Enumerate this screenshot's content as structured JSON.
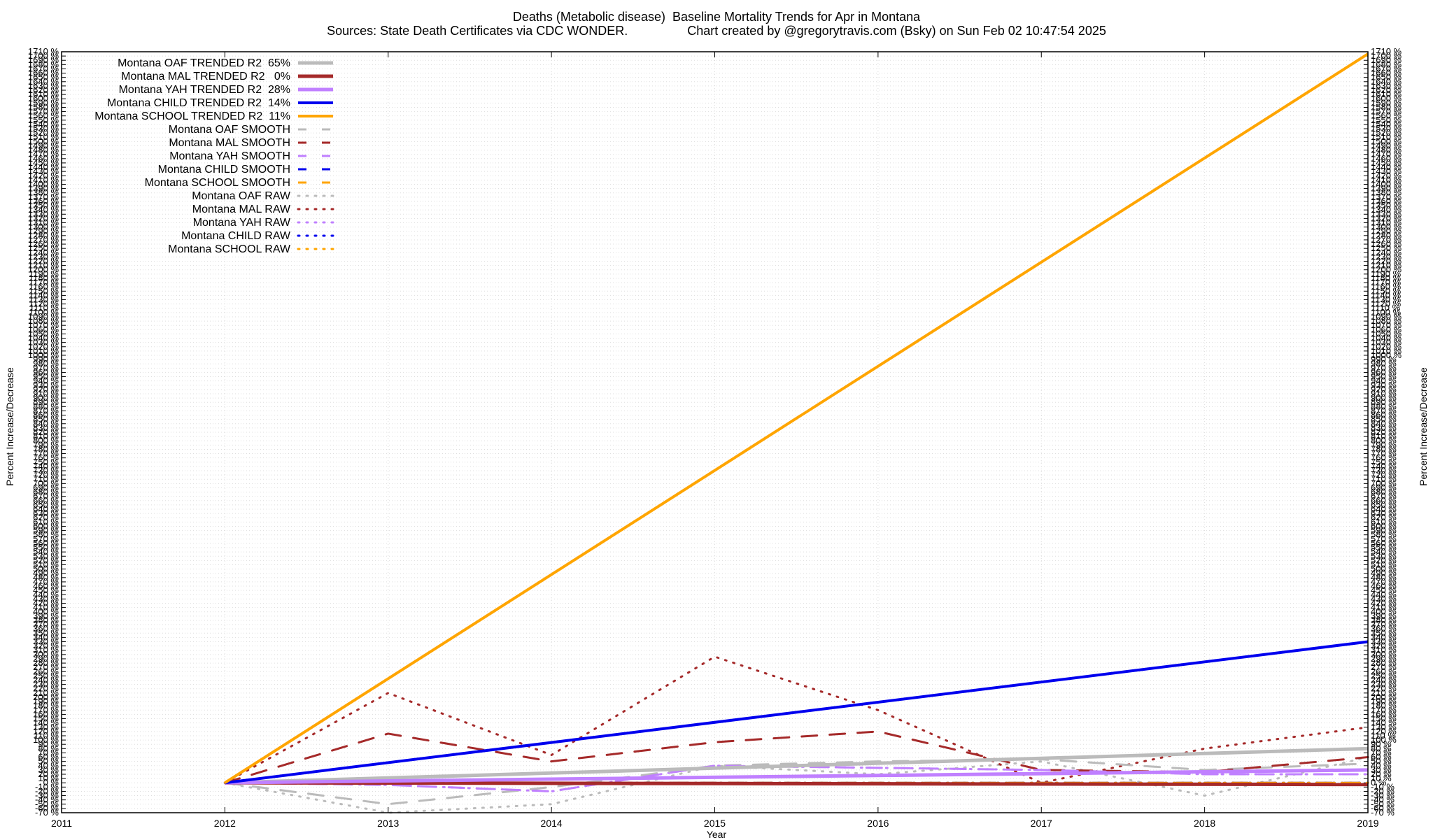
{
  "chart_data": {
    "type": "line",
    "title": "Deaths (Metabolic disease)  Baseline Mortality Trends for Apr in Montana",
    "subtitle": "Sources: State Death Certificates via CDC WONDER.                 Chart created by @gregorytravis.com (Bsky) on Sun Feb 02 10:47:54 2025",
    "xlabel": "Year",
    "ylabel": "Percent Increase/Decrease",
    "xlim": [
      2011,
      2019
    ],
    "ylim": [
      -70,
      1710
    ],
    "x_ticks": [
      2011,
      2012,
      2013,
      2014,
      2015,
      2016,
      2017,
      2018,
      2019
    ],
    "y_tick_step": 10,
    "y_tick_suffix": " %",
    "grid": true,
    "legend_position": "top-left",
    "series": [
      {
        "name": "Montana OAF TRENDED R2  65%",
        "style": "solid",
        "color": "#bbbbbb",
        "width": 5,
        "x": [
          2012,
          2019
        ],
        "y": [
          0,
          80
        ]
      },
      {
        "name": "Montana MAL TRENDED R2   0%",
        "style": "solid",
        "color": "#a52a2a",
        "width": 5,
        "x": [
          2012,
          2019
        ],
        "y": [
          0,
          -4
        ]
      },
      {
        "name": "Montana YAH TRENDED R2  28%",
        "style": "solid",
        "color": "#c080ff",
        "width": 5,
        "x": [
          2012,
          2019
        ],
        "y": [
          0,
          30
        ]
      },
      {
        "name": "Montana CHILD TRENDED R2  14%",
        "style": "solid",
        "color": "#0000ee",
        "width": 4,
        "x": [
          2012,
          2019
        ],
        "y": [
          0,
          330
        ]
      },
      {
        "name": "Montana SCHOOL TRENDED R2  11%",
        "style": "solid",
        "color": "#ffa500",
        "width": 4,
        "x": [
          2012,
          2019
        ],
        "y": [
          0,
          1705
        ]
      },
      {
        "name": "Montana OAF SMOOTH",
        "style": "dashed",
        "color": "#bbbbbb",
        "width": 3,
        "x": [
          2012,
          2013,
          2014,
          2015,
          2016,
          2017,
          2018,
          2019
        ],
        "y": [
          0,
          -50,
          -10,
          40,
          50,
          55,
          30,
          45
        ]
      },
      {
        "name": "Montana MAL SMOOTH",
        "style": "dashed",
        "color": "#a52a2a",
        "width": 3,
        "x": [
          2012,
          2013,
          2014,
          2015,
          2016,
          2017,
          2018,
          2019
        ],
        "y": [
          0,
          115,
          50,
          95,
          120,
          30,
          25,
          60
        ]
      },
      {
        "name": "Montana YAH SMOOTH",
        "style": "dashed",
        "color": "#c080ff",
        "width": 3,
        "x": [
          2012,
          2013,
          2014,
          2015,
          2016,
          2017,
          2018,
          2019
        ],
        "y": [
          0,
          -5,
          -20,
          40,
          35,
          30,
          20,
          20
        ]
      },
      {
        "name": "Montana CHILD SMOOTH",
        "style": "dashed",
        "color": "#0000ee",
        "width": 3,
        "x": [
          2012,
          2013,
          2014,
          2015,
          2016,
          2017,
          2018,
          2019
        ],
        "y": [
          0,
          0,
          0,
          0,
          0,
          0,
          0,
          0
        ]
      },
      {
        "name": "Montana SCHOOL SMOOTH",
        "style": "dashed",
        "color": "#ffa500",
        "width": 3,
        "x": [
          2012,
          2013,
          2014,
          2015,
          2016,
          2017,
          2018,
          2019
        ],
        "y": [
          0,
          0,
          0,
          0,
          0,
          0,
          0,
          0
        ]
      },
      {
        "name": "Montana OAF RAW",
        "style": "dotted",
        "color": "#bbbbbb",
        "width": 3,
        "x": [
          2012,
          2013,
          2014,
          2015,
          2016,
          2017,
          2018,
          2019
        ],
        "y": [
          0,
          -70,
          -50,
          40,
          20,
          50,
          -30,
          60
        ]
      },
      {
        "name": "Montana MAL RAW",
        "style": "dotted",
        "color": "#a52a2a",
        "width": 3,
        "x": [
          2012,
          2013,
          2014,
          2015,
          2016,
          2017,
          2018,
          2019
        ],
        "y": [
          0,
          210,
          65,
          295,
          170,
          0,
          80,
          130
        ]
      },
      {
        "name": "Montana YAH RAW",
        "style": "dotted",
        "color": "#c080ff",
        "width": 3,
        "x": [
          2012,
          2013,
          2014,
          2015,
          2016,
          2017,
          2018,
          2019
        ],
        "y": [
          0,
          -5,
          -20,
          40,
          35,
          30,
          20,
          20
        ]
      },
      {
        "name": "Montana CHILD RAW",
        "style": "dotted",
        "color": "#0000ee",
        "width": 3,
        "x": [
          2012,
          2013,
          2014,
          2015,
          2016,
          2017,
          2018,
          2019
        ],
        "y": [
          0,
          0,
          0,
          0,
          0,
          0,
          0,
          0
        ]
      },
      {
        "name": "Montana SCHOOL RAW",
        "style": "dotted",
        "color": "#ffa500",
        "width": 3,
        "x": [
          2012,
          2013,
          2014,
          2015,
          2016,
          2017,
          2018,
          2019
        ],
        "y": [
          0,
          0,
          0,
          0,
          0,
          0,
          0,
          0
        ]
      }
    ]
  }
}
